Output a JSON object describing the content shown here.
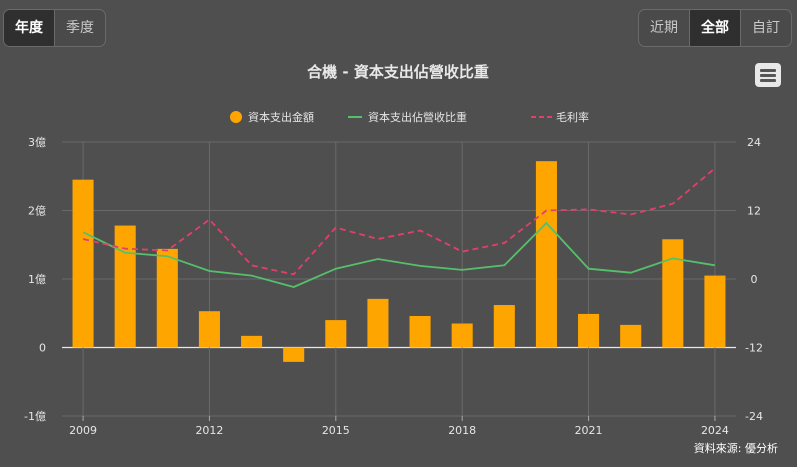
{
  "left_tabs": [
    {
      "label": "年度",
      "active": true
    },
    {
      "label": "季度",
      "active": false
    }
  ],
  "right_tabs": [
    {
      "label": "近期",
      "active": false
    },
    {
      "label": "全部",
      "active": true
    },
    {
      "label": "自訂",
      "active": false
    }
  ],
  "menu_icon": "hamburger-menu-icon",
  "colors": {
    "bar": "#ffa500",
    "ratio_line": "#55c06b",
    "margin_line": "#e0406a",
    "background": "#4f4f4f",
    "grid": "#6a6a6a"
  },
  "chart_data": {
    "type": "bar",
    "title": "合機 - 資本支出佔營收比重",
    "source": "資料來源: 優分析",
    "x": [
      2009,
      2010,
      2011,
      2012,
      2013,
      2014,
      2015,
      2016,
      2017,
      2018,
      2019,
      2020,
      2021,
      2022,
      2023,
      2024
    ],
    "x_ticks": [
      "2009",
      "2012",
      "2015",
      "2018",
      "2021",
      "2024"
    ],
    "y_left": {
      "ticks": [
        "3億",
        "2億",
        "1億",
        "0",
        "-1億"
      ],
      "ylim": [
        -1,
        3
      ]
    },
    "y_right": {
      "ticks": [
        "24",
        "12",
        "0",
        "-12",
        "-24"
      ],
      "ylim": [
        -24,
        24
      ]
    },
    "legend": [
      "資本支出金額",
      "資本支出佔營收比重",
      "毛利率"
    ],
    "legend_position": "top-center",
    "grid": true,
    "series": [
      {
        "name": "資本支出金額",
        "type": "bar",
        "axis": "left",
        "values": [
          2.45,
          1.78,
          1.44,
          0.53,
          0.17,
          -0.21,
          0.4,
          0.71,
          0.46,
          0.35,
          0.62,
          2.72,
          0.49,
          0.33,
          1.58,
          1.05
        ]
      },
      {
        "name": "資本支出佔營收比重",
        "type": "line",
        "axis": "right",
        "values": [
          8.2,
          4.6,
          4.0,
          1.4,
          0.6,
          -1.4,
          1.8,
          3.5,
          2.3,
          1.6,
          2.4,
          9.8,
          1.8,
          1.1,
          3.6,
          2.4
        ]
      },
      {
        "name": "毛利率",
        "type": "line-dashed",
        "axis": "right",
        "values": [
          7.0,
          5.3,
          5.0,
          10.4,
          2.4,
          0.8,
          9.0,
          7.0,
          8.5,
          4.8,
          6.3,
          12.0,
          12.2,
          11.3,
          13.2,
          19.4
        ]
      }
    ]
  }
}
